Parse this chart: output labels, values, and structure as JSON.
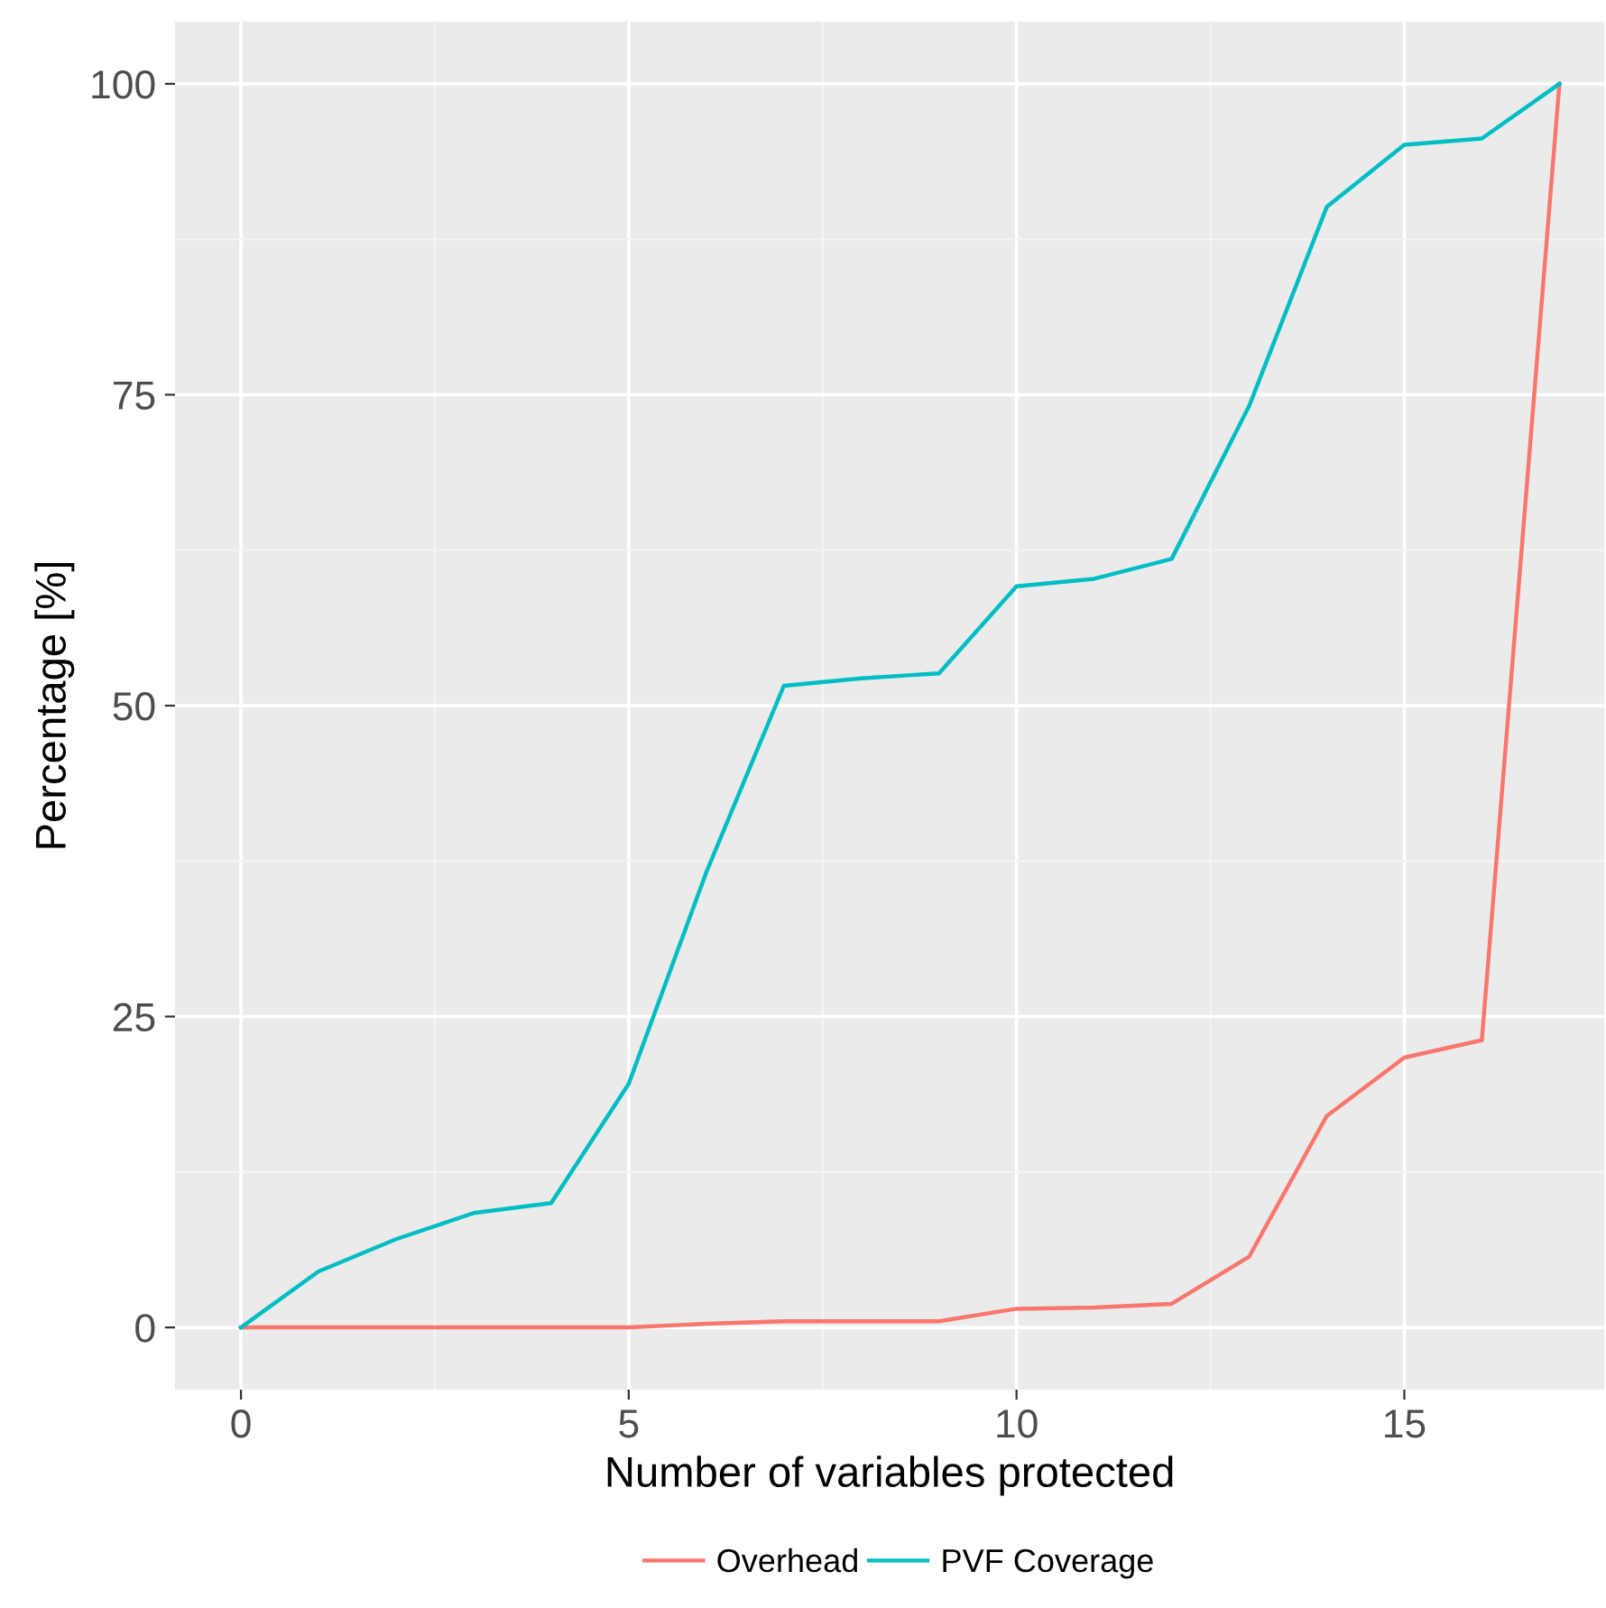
{
  "chart_data": {
    "type": "line",
    "xlabel": "Number of variables protected",
    "ylabel": "Percentage [%]",
    "x": [
      0,
      1,
      2,
      3,
      4,
      5,
      6,
      7,
      8,
      9,
      10,
      11,
      12,
      13,
      14,
      15,
      16,
      17
    ],
    "series": [
      {
        "name": "Overhead",
        "color": "#f8766d",
        "values": [
          0,
          0,
          0,
          0,
          0,
          0,
          0.3,
          0.5,
          0.5,
          0.5,
          1.5,
          1.6,
          1.9,
          5.7,
          17.0,
          21.7,
          23.1,
          100
        ]
      },
      {
        "name": "PVF Coverage",
        "color": "#00bfc4",
        "values": [
          0,
          4.5,
          7.1,
          9.2,
          10.0,
          19.6,
          36.6,
          51.6,
          52.2,
          52.6,
          59.6,
          60.2,
          61.8,
          74.1,
          90.1,
          95.1,
          95.6,
          100
        ]
      }
    ],
    "xlim": [
      -0.85,
      17.58
    ],
    "ylim": [
      -5,
      105
    ],
    "xticks": [
      0,
      5,
      10,
      15
    ],
    "yticks": [
      0,
      25,
      50,
      75,
      100
    ],
    "grid": true,
    "legend": "bottom",
    "marker": "none",
    "line_style": "solid"
  }
}
